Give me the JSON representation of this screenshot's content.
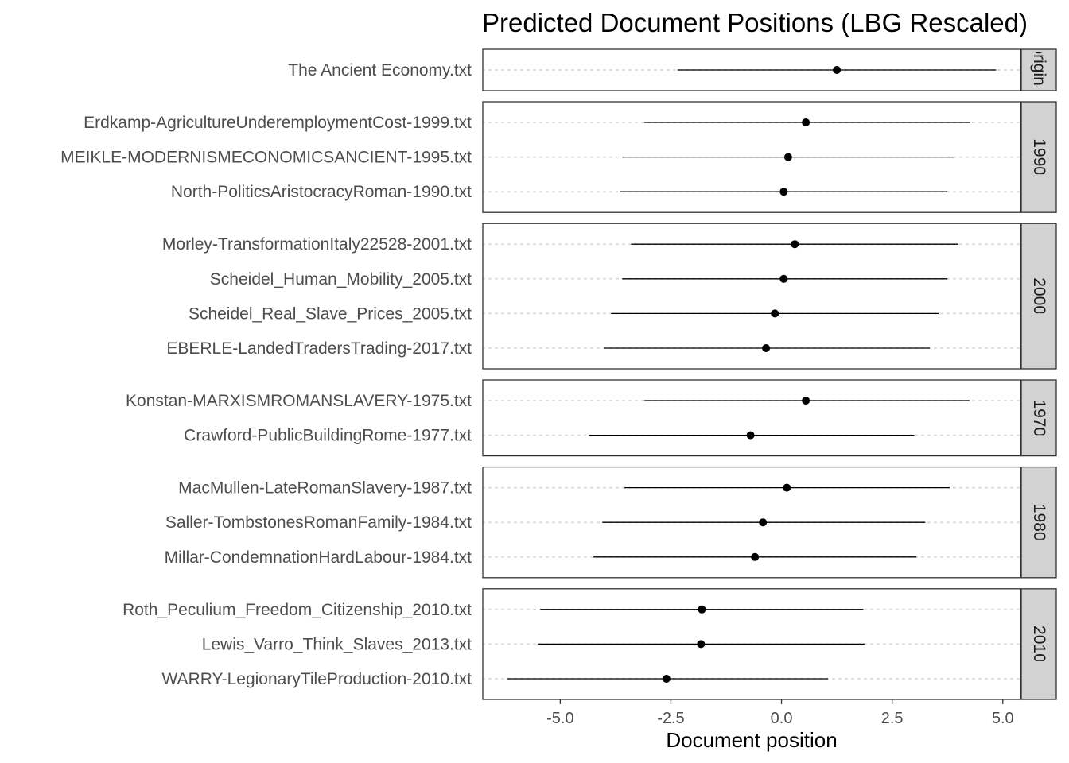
{
  "chart_data": {
    "type": "scatter",
    "subtype": "point-range (estimate with interval), faceted by group",
    "title": "Predicted Document Positions (LBG Rescaled)",
    "xlabel": "Document position",
    "ylabel": "",
    "xlim": [
      -6.75,
      5.4
    ],
    "x_ticks": [
      -5.0,
      -2.5,
      0.0,
      2.5,
      5.0
    ],
    "x_tick_labels": [
      "-5.0",
      "-2.5",
      "0.0",
      "2.5",
      "5.0"
    ],
    "grid": "dotted horizontal lines at each document",
    "facets": [
      {
        "label": "original",
        "shown_label": "origina",
        "documents": [
          {
            "name": "The Ancient Economy.txt",
            "estimate": 1.25,
            "lower": -2.35,
            "upper": 4.85
          }
        ]
      },
      {
        "label": "1990",
        "documents": [
          {
            "name": "Erdkamp-AgricultureUnderemploymentCost-1999.txt",
            "estimate": 0.55,
            "lower": -3.1,
            "upper": 4.25
          },
          {
            "name": "MEIKLE-MODERNISMECONOMICSANCIENT-1995.txt",
            "estimate": 0.15,
            "lower": -3.6,
            "upper": 3.9
          },
          {
            "name": "North-PoliticsAristocracyRoman-1990.txt",
            "estimate": 0.05,
            "lower": -3.65,
            "upper": 3.75
          }
        ]
      },
      {
        "label": "2000",
        "documents": [
          {
            "name": "Morley-TransformationItaly22528-2001.txt",
            "estimate": 0.3,
            "lower": -3.4,
            "upper": 4.0
          },
          {
            "name": "Scheidel_Human_Mobility_2005.txt",
            "estimate": 0.05,
            "lower": -3.6,
            "upper": 3.75
          },
          {
            "name": "Scheidel_Real_Slave_Prices_2005.txt",
            "estimate": -0.15,
            "lower": -3.85,
            "upper": 3.55
          },
          {
            "name": "EBERLE-LandedTradersTrading-2017.txt",
            "estimate": -0.35,
            "lower": -4.0,
            "upper": 3.35
          }
        ]
      },
      {
        "label": "1970",
        "documents": [
          {
            "name": "Konstan-MARXISMROMANSLAVERY-1975.txt",
            "estimate": 0.55,
            "lower": -3.1,
            "upper": 4.25
          },
          {
            "name": "Crawford-PublicBuildingRome-1977.txt",
            "estimate": -0.7,
            "lower": -4.35,
            "upper": 3.0
          }
        ]
      },
      {
        "label": "1980",
        "documents": [
          {
            "name": "MacMullen-LateRomanSlavery-1987.txt",
            "estimate": 0.12,
            "lower": -3.55,
            "upper": 3.8
          },
          {
            "name": "Saller-TombstonesRomanFamily-1984.txt",
            "estimate": -0.42,
            "lower": -4.05,
            "upper": 3.25
          },
          {
            "name": "Millar-CondemnationHardLabour-1984.txt",
            "estimate": -0.6,
            "lower": -4.25,
            "upper": 3.05
          }
        ]
      },
      {
        "label": "2010",
        "documents": [
          {
            "name": "Roth_Peculium_Freedom_Citizenship_2010.txt",
            "estimate": -1.8,
            "lower": -5.45,
            "upper": 1.85
          },
          {
            "name": "Lewis_Varro_Think_Slaves_2013.txt",
            "estimate": -1.82,
            "lower": -5.5,
            "upper": 1.88
          },
          {
            "name": "WARRY-LegionaryTileProduction-2010.txt",
            "estimate": -2.6,
            "lower": -6.2,
            "upper": 1.05
          }
        ]
      }
    ]
  }
}
